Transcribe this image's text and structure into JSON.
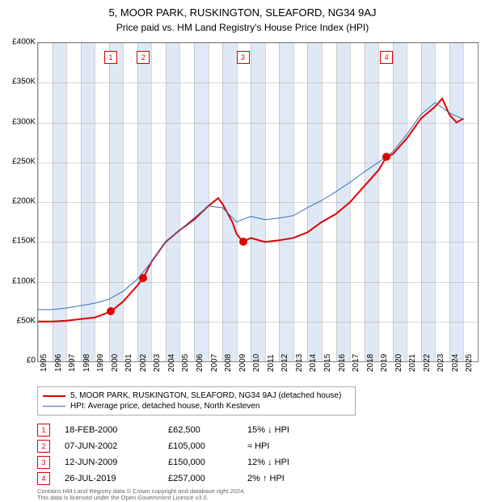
{
  "titles": {
    "line1": "5, MOOR PARK, RUSKINGTON, SLEAFORD, NG34 9AJ",
    "line2": "Price paid vs. HM Land Registry's House Price Index (HPI)"
  },
  "chart": {
    "type": "line",
    "background_color": "#ffffff",
    "grid_color": "#999999",
    "band_color": "#dfe9f5",
    "x_start_year": 1995,
    "x_end_year": 2026,
    "ylim": [
      0,
      400000
    ],
    "ytick_step": 50000,
    "yticks": [
      "£0",
      "£50K",
      "£100K",
      "£150K",
      "£200K",
      "£250K",
      "£300K",
      "£350K",
      "£400K"
    ],
    "xticks": [
      "1995",
      "1996",
      "1997",
      "1998",
      "1999",
      "2000",
      "2001",
      "2002",
      "2003",
      "2004",
      "2005",
      "2006",
      "2007",
      "2008",
      "2009",
      "2010",
      "2011",
      "2012",
      "2013",
      "2014",
      "2015",
      "2016",
      "2017",
      "2018",
      "2019",
      "2020",
      "2021",
      "2022",
      "2023",
      "2024",
      "2025"
    ],
    "series": [
      {
        "name": "red",
        "color": "#e00000",
        "width": 2,
        "label": "5, MOOR PARK, RUSKINGTON, SLEAFORD, NG34 9AJ (detached house)",
        "points": [
          [
            1995.0,
            50000
          ],
          [
            1996.0,
            50000
          ],
          [
            1997.0,
            51000
          ],
          [
            1998.0,
            53000
          ],
          [
            1999.0,
            55000
          ],
          [
            2000.13,
            62500
          ],
          [
            2001.0,
            75000
          ],
          [
            2002.0,
            95000
          ],
          [
            2002.43,
            105000
          ],
          [
            2003.0,
            125000
          ],
          [
            2004.0,
            150000
          ],
          [
            2005.0,
            165000
          ],
          [
            2006.0,
            178000
          ],
          [
            2007.0,
            195000
          ],
          [
            2007.7,
            205000
          ],
          [
            2008.0,
            198000
          ],
          [
            2008.7,
            175000
          ],
          [
            2009.0,
            160000
          ],
          [
            2009.45,
            150000
          ],
          [
            2010.0,
            155000
          ],
          [
            2011.0,
            150000
          ],
          [
            2012.0,
            152000
          ],
          [
            2013.0,
            155000
          ],
          [
            2014.0,
            162000
          ],
          [
            2015.0,
            175000
          ],
          [
            2016.0,
            185000
          ],
          [
            2017.0,
            200000
          ],
          [
            2018.0,
            220000
          ],
          [
            2019.0,
            240000
          ],
          [
            2019.57,
            257000
          ],
          [
            2020.0,
            260000
          ],
          [
            2021.0,
            280000
          ],
          [
            2022.0,
            305000
          ],
          [
            2023.0,
            320000
          ],
          [
            2023.5,
            330000
          ],
          [
            2024.0,
            310000
          ],
          [
            2024.5,
            300000
          ],
          [
            2025.0,
            305000
          ]
        ]
      },
      {
        "name": "blue",
        "color": "#3b6db5",
        "width": 1,
        "label": "HPI: Average price, detached house, North Kesteven",
        "points": [
          [
            1995.0,
            65000
          ],
          [
            1996.0,
            65000
          ],
          [
            1997.0,
            67000
          ],
          [
            1998.0,
            70000
          ],
          [
            1999.0,
            73000
          ],
          [
            2000.0,
            78000
          ],
          [
            2001.0,
            88000
          ],
          [
            2002.0,
            103000
          ],
          [
            2003.0,
            125000
          ],
          [
            2004.0,
            150000
          ],
          [
            2005.0,
            165000
          ],
          [
            2006.0,
            180000
          ],
          [
            2007.0,
            195000
          ],
          [
            2008.0,
            193000
          ],
          [
            2009.0,
            175000
          ],
          [
            2010.0,
            182000
          ],
          [
            2011.0,
            178000
          ],
          [
            2012.0,
            180000
          ],
          [
            2013.0,
            183000
          ],
          [
            2014.0,
            193000
          ],
          [
            2015.0,
            202000
          ],
          [
            2016.0,
            213000
          ],
          [
            2017.0,
            225000
          ],
          [
            2018.0,
            238000
          ],
          [
            2019.0,
            250000
          ],
          [
            2020.0,
            263000
          ],
          [
            2021.0,
            285000
          ],
          [
            2022.0,
            310000
          ],
          [
            2023.0,
            325000
          ],
          [
            2024.0,
            312000
          ],
          [
            2025.0,
            304000
          ]
        ]
      }
    ],
    "event_markers": [
      {
        "n": "1",
        "year": 2000.13,
        "price": 62500
      },
      {
        "n": "2",
        "year": 2002.43,
        "price": 105000
      },
      {
        "n": "3",
        "year": 2009.45,
        "price": 150000
      },
      {
        "n": "4",
        "year": 2019.57,
        "price": 257000
      }
    ]
  },
  "legend": {
    "items": [
      {
        "color": "#e00000",
        "thick": 2,
        "label": "5, MOOR PARK, RUSKINGTON, SLEAFORD, NG34 9AJ (detached house)"
      },
      {
        "color": "#3b6db5",
        "thick": 1,
        "label": "HPI: Average price, detached house, North Kesteven"
      }
    ]
  },
  "events_table": [
    {
      "n": "1",
      "date": "18-FEB-2000",
      "price": "£62,500",
      "delta": "15% ↓ HPI"
    },
    {
      "n": "2",
      "date": "07-JUN-2002",
      "price": "£105,000",
      "delta": "≈ HPI"
    },
    {
      "n": "3",
      "date": "12-JUN-2009",
      "price": "£150,000",
      "delta": "12% ↓ HPI"
    },
    {
      "n": "4",
      "date": "26-JUL-2019",
      "price": "£257,000",
      "delta": "2% ↑ HPI"
    }
  ],
  "footer": {
    "line1": "Contains HM Land Registry data © Crown copyright and database right 2024.",
    "line2": "This data is licensed under the Open Government Licence v3.0."
  }
}
